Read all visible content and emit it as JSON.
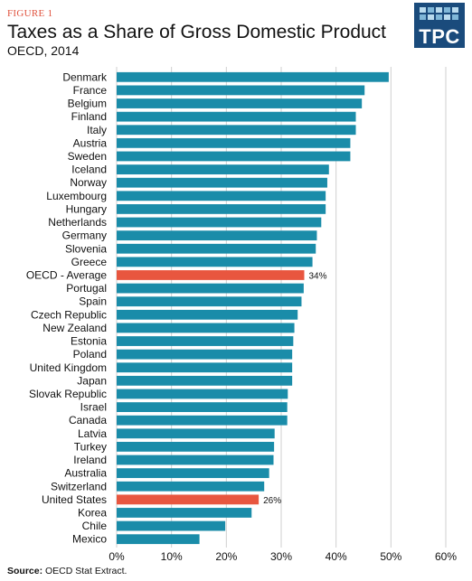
{
  "header": {
    "figure_label": "FIGURE 1",
    "title": "Taxes as a Share of Gross Domestic Product",
    "subtitle": "OECD, 2014",
    "logo_text": "TPC"
  },
  "source": {
    "label": "Source:",
    "text": " OECD  Stat Extract."
  },
  "colors": {
    "bar": "#1a8ca9",
    "highlight": "#e8563f",
    "grid": "#cfcfcf",
    "logo_bg": "#1a4b7c"
  },
  "chart_data": {
    "type": "bar",
    "orientation": "horizontal",
    "title": "Taxes as a Share of Gross Domestic Product",
    "xlabel": "",
    "ylabel": "",
    "xlim": [
      0,
      60
    ],
    "x_ticks": [
      "0%",
      "10%",
      "20%",
      "30%",
      "40%",
      "50%",
      "60%"
    ],
    "grid": "vertical",
    "unit": "%",
    "categories": [
      "Denmark",
      "France",
      "Belgium",
      "Finland",
      "Italy",
      "Austria",
      "Sweden",
      "Iceland",
      "Norway",
      "Luxembourg",
      "Hungary",
      "Netherlands",
      "Germany",
      "Slovenia",
      "Greece",
      "OECD - Average",
      "Portugal",
      "Spain",
      "Czech Republic",
      "New Zealand",
      "Estonia",
      "Poland",
      "United Kingdom",
      "Japan",
      "Slovak Republic",
      "Israel",
      "Canada",
      "Latvia",
      "Turkey",
      "Ireland",
      "Australia",
      "Switzerland",
      "United States",
      "Korea",
      "Chile",
      "Mexico"
    ],
    "values": [
      49.6,
      45.2,
      44.7,
      43.6,
      43.6,
      42.6,
      42.6,
      38.7,
      38.4,
      38.1,
      38.1,
      37.3,
      36.5,
      36.3,
      35.7,
      34.2,
      34.1,
      33.7,
      33.0,
      32.4,
      32.2,
      32.0,
      32.0,
      32.0,
      31.2,
      31.1,
      31.1,
      28.8,
      28.7,
      28.6,
      27.8,
      26.9,
      25.9,
      24.6,
      19.8,
      15.1
    ],
    "highlighted": [
      "OECD - Average",
      "United States"
    ],
    "data_labels": [
      {
        "category": "OECD - Average",
        "label": "34%"
      },
      {
        "category": "United States",
        "label": "26%"
      }
    ]
  }
}
